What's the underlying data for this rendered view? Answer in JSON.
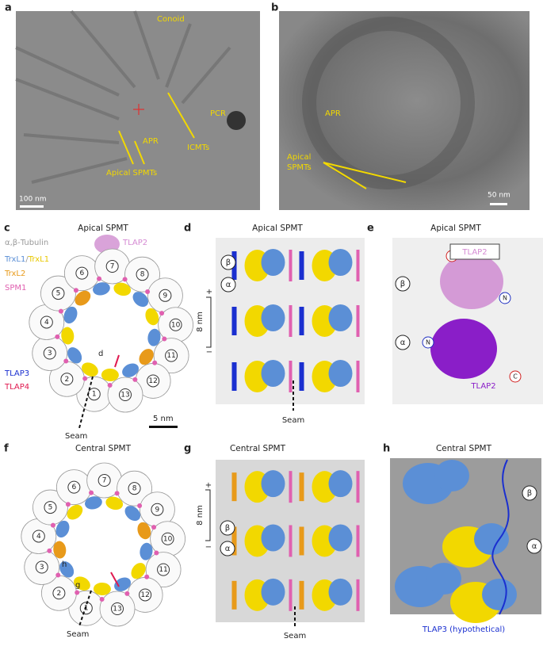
{
  "panels": {
    "a": {
      "label": "a",
      "conoid": "Conoid",
      "pcr": "PCR",
      "apr": "APR",
      "icmts": "ICMTs",
      "apical_spmts": "Apical SPMTs",
      "scale_bar": "100 nm"
    },
    "b": {
      "label": "b",
      "apr": "APR",
      "apical_spmts": [
        "Apical",
        "SPMTs"
      ],
      "scale_bar": "50 nm"
    },
    "c": {
      "label": "c",
      "title": "Apical SPMT",
      "legend": {
        "tubulin": "α,β-Tubulin",
        "tlap2": "TLAP2",
        "trxl1_a": "TrxL1",
        "slash": "/",
        "trxl1_b": "TrxL1",
        "trxl2": "TrxL2",
        "spm1": "SPM1",
        "tlap3": "TLAP3",
        "tlap4": "TLAP4"
      },
      "protofilaments": [
        "1",
        "2",
        "3",
        "4",
        "5",
        "6",
        "7",
        "8",
        "9",
        "10",
        "11",
        "12",
        "13"
      ],
      "view": "d",
      "scale_bar": "5 nm",
      "seam": "Seam"
    },
    "d": {
      "label": "d",
      "title": "Apical SPMT",
      "beta": "β",
      "alpha": "α",
      "plus": "+",
      "minus": "−",
      "spacing": "8 nm",
      "seam": "Seam"
    },
    "e": {
      "label": "e",
      "title": "Apical SPMT",
      "c_top": "C",
      "tlap2_box": "TLAP2",
      "beta": "β",
      "n_right": "N",
      "alpha": "α",
      "n_left": "N",
      "tlap2": "TLAP2",
      "c_bottom": "C"
    },
    "f": {
      "label": "f",
      "title": "Central SPMT",
      "protofilaments": [
        "1",
        "2",
        "3",
        "4",
        "5",
        "6",
        "7",
        "8",
        "9",
        "10",
        "11",
        "12",
        "13"
      ],
      "view_h": "h",
      "view_g": "g",
      "seam": "Seam"
    },
    "g": {
      "label": "g",
      "title": "Central SPMT",
      "plus": "+",
      "beta": "β",
      "alpha": "α",
      "minus": "−",
      "spacing": "8 nm",
      "seam": "Seam"
    },
    "h": {
      "label": "h",
      "title": "Central SPMT",
      "beta": "β",
      "alpha": "α",
      "caption": "TLAP3 (hypothetical)"
    }
  }
}
